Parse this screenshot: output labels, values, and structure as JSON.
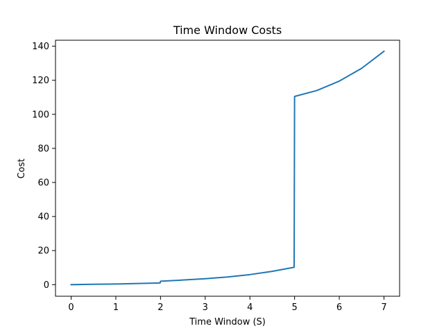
{
  "chart_data": {
    "type": "line",
    "title": "Time Window Costs",
    "xlabel": "Time Window (S)",
    "ylabel": "Cost",
    "xlim": [
      -0.35,
      7.35
    ],
    "ylim": [
      -6.8,
      143.5
    ],
    "xticks": [
      0,
      1,
      2,
      3,
      4,
      5,
      6,
      7
    ],
    "yticks": [
      0,
      20,
      40,
      60,
      80,
      100,
      120,
      140
    ],
    "grid": false,
    "series": [
      {
        "color": "#1f77b4",
        "x": [
          0,
          0.5,
          1.0,
          1.5,
          1.99,
          2.0,
          2.5,
          3.0,
          3.5,
          4.0,
          4.5,
          4.99,
          5.0,
          5.5,
          6.0,
          6.5,
          7.0
        ],
        "y": [
          0,
          0.2,
          0.4,
          0.7,
          1.0,
          2.0,
          2.7,
          3.5,
          4.5,
          5.9,
          7.8,
          10.2,
          110.5,
          114.0,
          119.5,
          127.0,
          137.0
        ]
      }
    ]
  }
}
